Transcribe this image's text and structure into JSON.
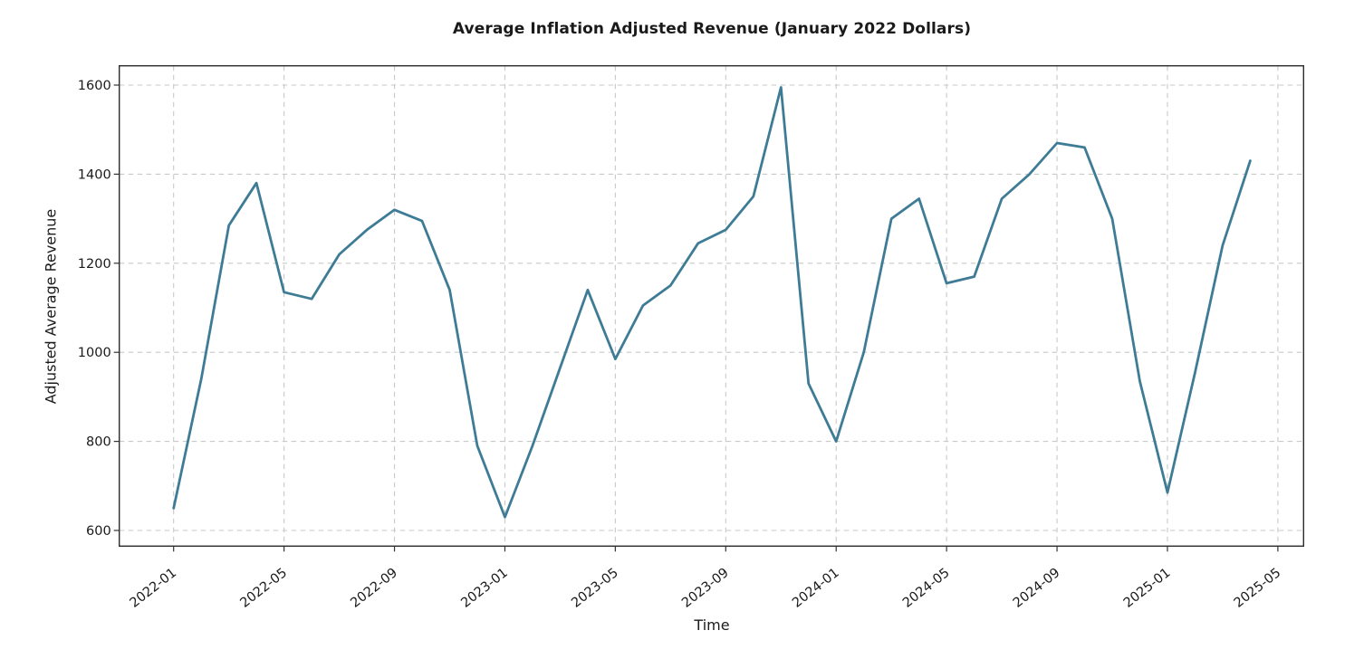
{
  "figure": {
    "title": "Average Inflation Adjusted Revenue (January 2022 Dollars)",
    "xlabel": "Time",
    "ylabel": "Adjusted Average Revenue"
  },
  "chart_data": {
    "type": "line",
    "title": "Average Inflation Adjusted Revenue (January 2022 Dollars)",
    "xlabel": "Time",
    "ylabel": "Adjusted Average Revenue",
    "x": [
      "2022-01",
      "2022-02",
      "2022-03",
      "2022-04",
      "2022-05",
      "2022-06",
      "2022-07",
      "2022-08",
      "2022-09",
      "2022-10",
      "2022-11",
      "2022-12",
      "2023-01",
      "2023-02",
      "2023-03",
      "2023-04",
      "2023-05",
      "2023-06",
      "2023-07",
      "2023-08",
      "2023-09",
      "2023-10",
      "2023-11",
      "2023-12",
      "2024-01",
      "2024-02",
      "2024-03",
      "2024-04",
      "2024-05",
      "2024-06",
      "2024-07",
      "2024-08",
      "2024-09",
      "2024-10",
      "2024-11",
      "2024-12",
      "2025-01",
      "2025-02",
      "2025-03",
      "2025-04"
    ],
    "values": [
      650,
      940,
      1285,
      1380,
      1135,
      1120,
      1220,
      1275,
      1320,
      1295,
      1140,
      790,
      630,
      790,
      965,
      1140,
      985,
      1105,
      1150,
      1245,
      1275,
      1350,
      1595,
      930,
      800,
      1000,
      1300,
      1345,
      1155,
      1170,
      1345,
      1400,
      1470,
      1460,
      1300,
      935,
      685,
      955,
      1240,
      1430
    ],
    "x_tick_labels": [
      "2022-01",
      "2022-05",
      "2022-09",
      "2023-01",
      "2023-05",
      "2023-09",
      "2024-01",
      "2024-05",
      "2024-09",
      "2025-01",
      "2025-05"
    ],
    "y_ticks": [
      600,
      800,
      1000,
      1200,
      1400,
      1600
    ],
    "ylim": [
      565,
      1645
    ],
    "grid": "dashed-both-axes",
    "legend": "none"
  },
  "style": {
    "line_color": "#3e7c96",
    "grid_color": "#c9c9c9",
    "spine_color": "#2b2b2b",
    "tick_color": "#333333",
    "text_color": "#1a1a1a",
    "background": "#ffffff"
  }
}
